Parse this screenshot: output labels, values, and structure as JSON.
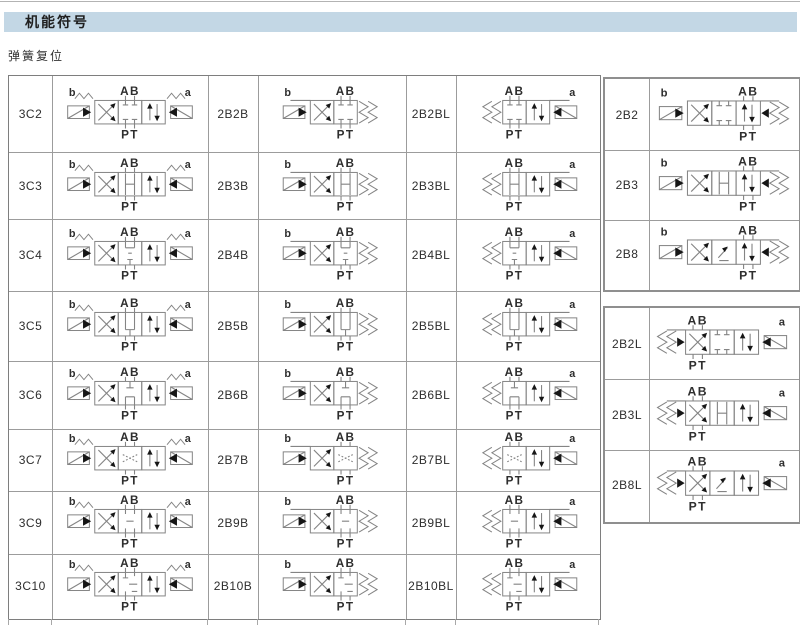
{
  "page": {
    "title": "机能符号",
    "subtitle": "弹簧复位"
  },
  "colors": {
    "title_band": "#c3d7e5",
    "table_line": "#9c9c9c",
    "symbol_line": "#848484",
    "text": "#2e2e2e",
    "solid_black": "#161616"
  },
  "symbol_labels": {
    "top": "AB",
    "bottom": "PT",
    "solenoid_b": "b",
    "solenoid_a": "a"
  },
  "main_table": {
    "rows": [
      {
        "cells": [
          {
            "code": "3C2",
            "symbol": {
              "kind": "3C",
              "spool": "c2"
            }
          },
          {
            "code": "2B2B",
            "symbol": {
              "kind": "2BB",
              "spool": "c2"
            }
          },
          {
            "code": "2B2BL",
            "symbol": {
              "kind": "2BBL",
              "spool": "c2"
            }
          }
        ]
      },
      {
        "cells": [
          {
            "code": "3C3",
            "symbol": {
              "kind": "3C",
              "spool": "c3"
            }
          },
          {
            "code": "2B3B",
            "symbol": {
              "kind": "2BB",
              "spool": "c3"
            }
          },
          {
            "code": "2B3BL",
            "symbol": {
              "kind": "2BBL",
              "spool": "c3"
            }
          }
        ]
      },
      {
        "cells": [
          {
            "code": "3C4",
            "symbol": {
              "kind": "3C",
              "spool": "c4"
            }
          },
          {
            "code": "2B4B",
            "symbol": {
              "kind": "2BB",
              "spool": "c4"
            }
          },
          {
            "code": "2B4BL",
            "symbol": {
              "kind": "2BBL",
              "spool": "c4"
            }
          }
        ]
      },
      {
        "cells": [
          {
            "code": "3C5",
            "symbol": {
              "kind": "3C",
              "spool": "c5"
            }
          },
          {
            "code": "2B5B",
            "symbol": {
              "kind": "2BB",
              "spool": "c5"
            }
          },
          {
            "code": "2B5BL",
            "symbol": {
              "kind": "2BBL",
              "spool": "c5"
            }
          }
        ]
      },
      {
        "cells": [
          {
            "code": "3C6",
            "symbol": {
              "kind": "3C",
              "spool": "c6"
            }
          },
          {
            "code": "2B6B",
            "symbol": {
              "kind": "2BB",
              "spool": "c6"
            }
          },
          {
            "code": "2B6BL",
            "symbol": {
              "kind": "2BBL",
              "spool": "c6"
            }
          }
        ]
      },
      {
        "cells": [
          {
            "code": "3C7",
            "symbol": {
              "kind": "3C",
              "spool": "c7"
            }
          },
          {
            "code": "2B7B",
            "symbol": {
              "kind": "2BB",
              "spool": "c7"
            }
          },
          {
            "code": "2B7BL",
            "symbol": {
              "kind": "2BBL",
              "spool": "c7"
            }
          }
        ]
      },
      {
        "cells": [
          {
            "code": "3C9",
            "symbol": {
              "kind": "3C",
              "spool": "c9"
            }
          },
          {
            "code": "2B9B",
            "symbol": {
              "kind": "2BB",
              "spool": "c9"
            }
          },
          {
            "code": "2B9BL",
            "symbol": {
              "kind": "2BBL",
              "spool": "c9"
            }
          }
        ]
      },
      {
        "cells": [
          {
            "code": "3C10",
            "symbol": {
              "kind": "3C",
              "spool": "c10"
            }
          },
          {
            "code": "2B10B",
            "symbol": {
              "kind": "2BB",
              "spool": "c10"
            }
          },
          {
            "code": "2B10BL",
            "symbol": {
              "kind": "2BBL",
              "spool": "c10"
            }
          }
        ]
      }
    ]
  },
  "right_panels": [
    {
      "rows": [
        {
          "code": "2B2",
          "symbol": {
            "kind": "2B",
            "spool": "c2"
          }
        },
        {
          "code": "2B3",
          "symbol": {
            "kind": "2B",
            "spool": "c3"
          }
        },
        {
          "code": "2B8",
          "symbol": {
            "kind": "2B",
            "spool": "c8"
          }
        }
      ]
    },
    {
      "rows": [
        {
          "code": "2B2L",
          "symbol": {
            "kind": "2BL",
            "spool": "c2"
          }
        },
        {
          "code": "2B3L",
          "symbol": {
            "kind": "2BL",
            "spool": "c3"
          }
        },
        {
          "code": "2B8L",
          "symbol": {
            "kind": "2BL",
            "spool": "c8"
          }
        }
      ]
    }
  ]
}
